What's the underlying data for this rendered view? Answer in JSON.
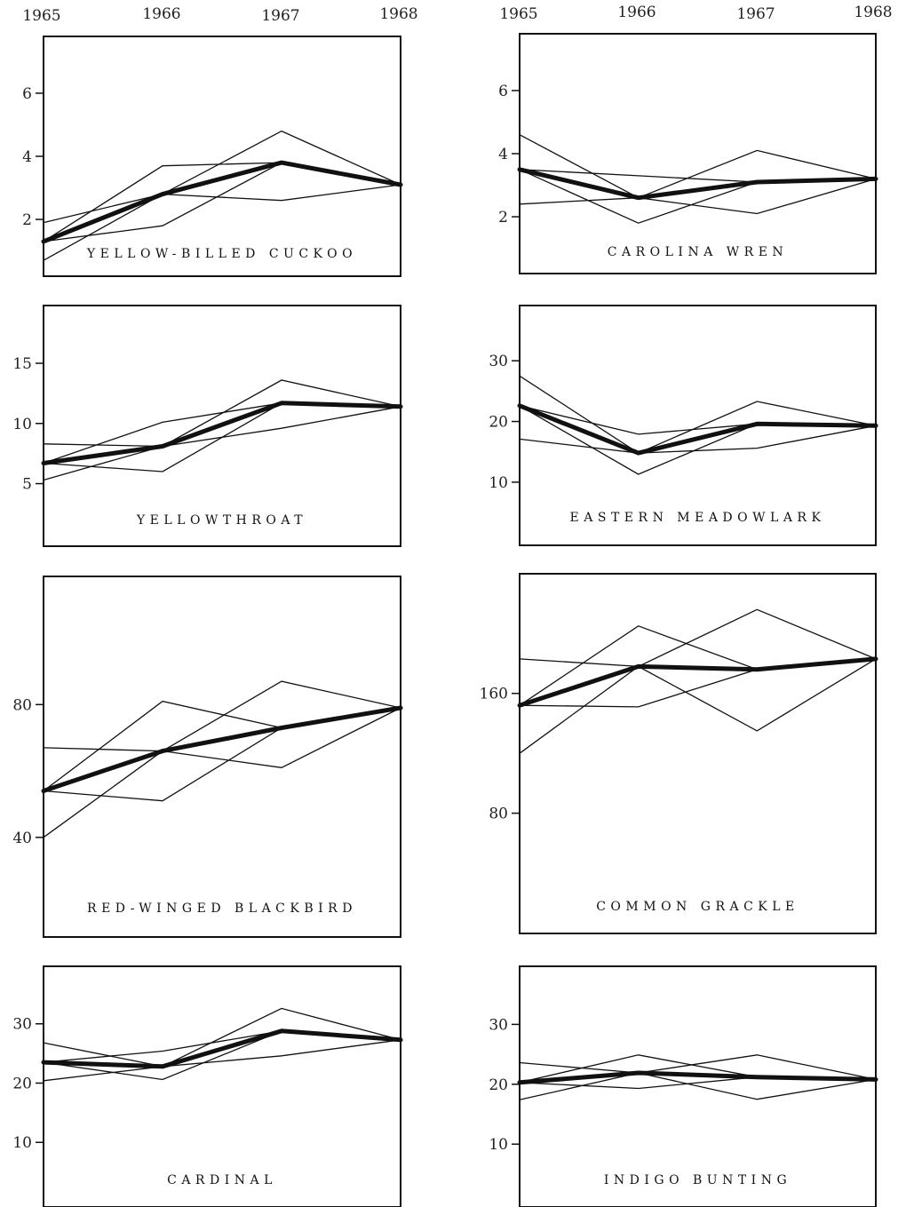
{
  "chart_data": [
    {
      "type": "line",
      "title": "YELLOW-BILLED CUCKOO",
      "x": [
        "1965",
        "1966",
        "1967",
        "1968"
      ],
      "yticks": [
        "2",
        "4",
        "6"
      ],
      "ylim": [
        0.2,
        7.8
      ],
      "series": [
        {
          "values": [
            1.3,
            2.8,
            3.8,
            3.1
          ]
        },
        {
          "values": [
            0.7,
            2.8,
            4.8,
            3.1
          ]
        },
        {
          "values": [
            1.9,
            2.8,
            2.6,
            3.1
          ]
        },
        {
          "values": [
            1.3,
            1.8,
            3.8,
            3.1
          ]
        },
        {
          "values": [
            1.3,
            3.7,
            3.8,
            3.1
          ]
        }
      ]
    },
    {
      "type": "line",
      "title": "CAROLINA WREN",
      "x": [
        "1965",
        "1966",
        "1967",
        "1968"
      ],
      "yticks": [
        "2",
        "4",
        "6"
      ],
      "ylim": [
        0.2,
        7.8
      ],
      "series": [
        {
          "values": [
            3.5,
            2.6,
            3.1,
            3.2
          ]
        },
        {
          "values": [
            4.6,
            2.6,
            4.1,
            3.2
          ]
        },
        {
          "values": [
            2.4,
            2.6,
            2.1,
            3.2
          ]
        },
        {
          "values": [
            3.5,
            1.8,
            3.1,
            3.2
          ]
        },
        {
          "values": [
            3.5,
            3.3,
            3.1,
            3.2
          ]
        }
      ]
    },
    {
      "type": "line",
      "title": "YELLOWTHROAT",
      "x": [
        "1965",
        "1966",
        "1967",
        "1968"
      ],
      "yticks": [
        "5",
        "10",
        "15"
      ],
      "ylim": [
        -0.2,
        19.8
      ],
      "series": [
        {
          "values": [
            6.7,
            8.1,
            11.7,
            11.4
          ]
        },
        {
          "values": [
            5.3,
            8.1,
            13.6,
            11.4
          ]
        },
        {
          "values": [
            8.3,
            8.1,
            9.6,
            11.4
          ]
        },
        {
          "values": [
            6.7,
            6.0,
            11.7,
            11.4
          ]
        },
        {
          "values": [
            6.7,
            10.1,
            11.7,
            11.4
          ]
        }
      ]
    },
    {
      "type": "line",
      "title": "EASTERN MEADOWLARK",
      "x": [
        "1965",
        "1966",
        "1967",
        "1968"
      ],
      "yticks": [
        "10",
        "20",
        "30"
      ],
      "ylim": [
        -0.4,
        39.1
      ],
      "series": [
        {
          "values": [
            22.6,
            14.8,
            19.6,
            19.3
          ]
        },
        {
          "values": [
            27.5,
            14.8,
            23.3,
            19.3
          ]
        },
        {
          "values": [
            17.1,
            14.8,
            15.6,
            19.3
          ]
        },
        {
          "values": [
            22.6,
            11.3,
            19.6,
            19.3
          ]
        },
        {
          "values": [
            22.6,
            17.9,
            19.6,
            19.3
          ]
        }
      ]
    },
    {
      "type": "line",
      "title": "RED-WINGED BLACKBIRD",
      "x": [
        "1965",
        "1966",
        "1967",
        "1968"
      ],
      "yticks": [
        "40",
        "80"
      ],
      "ylim": [
        10,
        118.6
      ],
      "series": [
        {
          "values": [
            54,
            66,
            73,
            79
          ]
        },
        {
          "values": [
            40,
            66,
            87,
            79
          ]
        },
        {
          "values": [
            67,
            66,
            61,
            79
          ]
        },
        {
          "values": [
            54,
            81,
            73,
            79
          ]
        },
        {
          "values": [
            54,
            51,
            73,
            79
          ]
        }
      ]
    },
    {
      "type": "line",
      "title": "COMMON GRACKLE",
      "x": [
        "1965",
        "1966",
        "1967",
        "1968"
      ],
      "yticks": [
        "80",
        "160"
      ],
      "ylim": [
        -0.3,
        239.9
      ],
      "series": [
        {
          "values": [
            152,
            178,
            176,
            183
          ]
        },
        {
          "values": [
            120,
            178,
            216,
            183
          ]
        },
        {
          "values": [
            183,
            178,
            135,
            183
          ]
        },
        {
          "values": [
            152,
            205,
            176,
            183
          ]
        },
        {
          "values": [
            152,
            151,
            176,
            183
          ]
        }
      ]
    },
    {
      "type": "line",
      "title": "CARDINAL",
      "x": [
        "1965",
        "1966",
        "1967",
        "1968"
      ],
      "yticks": [
        "10",
        "20",
        "30"
      ],
      "ylim": [
        -0.9,
        39.7
      ],
      "series": [
        {
          "values": [
            23.5,
            22.8,
            28.8,
            27.3
          ]
        },
        {
          "values": [
            20.4,
            22.8,
            24.6,
            27.3
          ]
        },
        {
          "values": [
            26.8,
            22.8,
            32.6,
            27.3
          ]
        },
        {
          "values": [
            23.5,
            25.4,
            28.8,
            27.3
          ]
        },
        {
          "values": [
            23.5,
            20.6,
            28.8,
            27.3
          ]
        }
      ]
    },
    {
      "type": "line",
      "title": "INDIGO BUNTING",
      "x": [
        "1965",
        "1966",
        "1967",
        "1968"
      ],
      "yticks": [
        "10",
        "20",
        "30"
      ],
      "ylim": [
        -0.5,
        39.7
      ],
      "series": [
        {
          "values": [
            20.3,
            21.9,
            21.2,
            20.8
          ]
        },
        {
          "values": [
            17.4,
            21.9,
            24.9,
            20.8
          ]
        },
        {
          "values": [
            23.6,
            21.9,
            17.5,
            20.8
          ]
        },
        {
          "values": [
            20.3,
            24.9,
            21.2,
            20.8
          ]
        },
        {
          "values": [
            20.3,
            19.3,
            21.2,
            20.8
          ]
        }
      ]
    }
  ]
}
